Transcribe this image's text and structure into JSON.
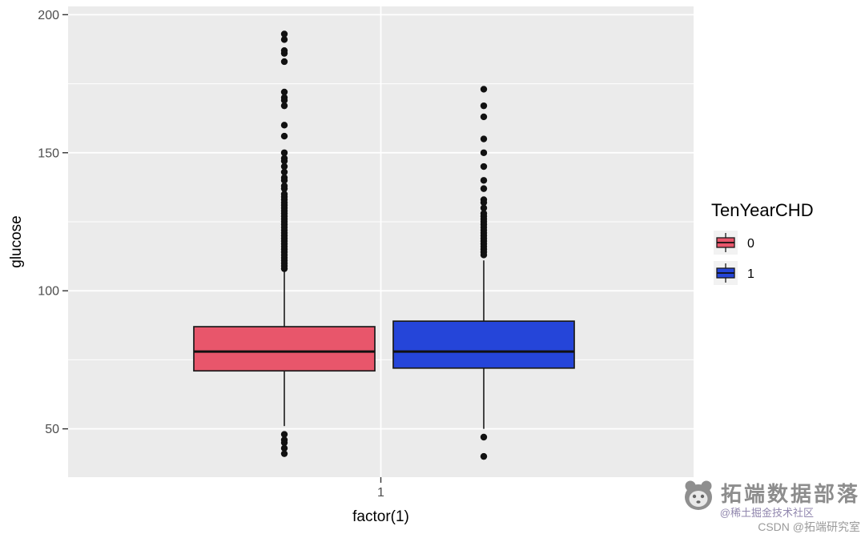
{
  "chart_data": {
    "type": "boxplot",
    "title": "",
    "xlabel": "factor(1)",
    "ylabel": "glucose",
    "categories": [
      "1"
    ],
    "ylim": [
      32.5,
      203
    ],
    "yticks": [
      50,
      100,
      150,
      200
    ],
    "yminor": [
      75,
      125,
      175
    ],
    "grid": true,
    "panel_bg": "#EBEBEB",
    "grid_color": "#FFFFFF",
    "tick_label_color": "#4D4D4D",
    "legend": {
      "title": "TenYearCHD",
      "position": "right",
      "key_bg": "#F2F2F2",
      "entries": [
        {
          "label": "0",
          "color": "#E8566B"
        },
        {
          "label": "1",
          "color": "#2545D9"
        }
      ]
    },
    "series": [
      {
        "name": "0",
        "fill": "#E8566B",
        "category": "1",
        "stats": {
          "whisker_low": 51,
          "q1": 71,
          "median": 78,
          "q3": 87,
          "whisker_high": 108
        },
        "outliers_low": [
          48,
          46,
          45,
          43,
          41
        ],
        "outliers_high": [
          108,
          109,
          110,
          111,
          112,
          113,
          114,
          115,
          116,
          117,
          118,
          119,
          120,
          121,
          122,
          123,
          124,
          125,
          126,
          127,
          128,
          129,
          130,
          131,
          132,
          133,
          134,
          135,
          137,
          138,
          140,
          141,
          143,
          145,
          147,
          148,
          150,
          156,
          160,
          167,
          169,
          170,
          172,
          183,
          186,
          187,
          191,
          193
        ]
      },
      {
        "name": "1",
        "fill": "#2545D9",
        "category": "1",
        "stats": {
          "whisker_low": 50,
          "q1": 72,
          "median": 78,
          "q3": 89,
          "whisker_high": 111
        },
        "outliers_low": [
          47,
          40
        ],
        "outliers_high": [
          113,
          114,
          115,
          116,
          117,
          118,
          119,
          120,
          121,
          122,
          123,
          124,
          125,
          126,
          127,
          128,
          130,
          132,
          133,
          137,
          140,
          145,
          150,
          155,
          163,
          167,
          173
        ]
      }
    ]
  },
  "watermark": {
    "brand": "拓端数据部落",
    "line1": "@稀土掘金技术社区",
    "line2": "CSDN @拓端研究室"
  }
}
